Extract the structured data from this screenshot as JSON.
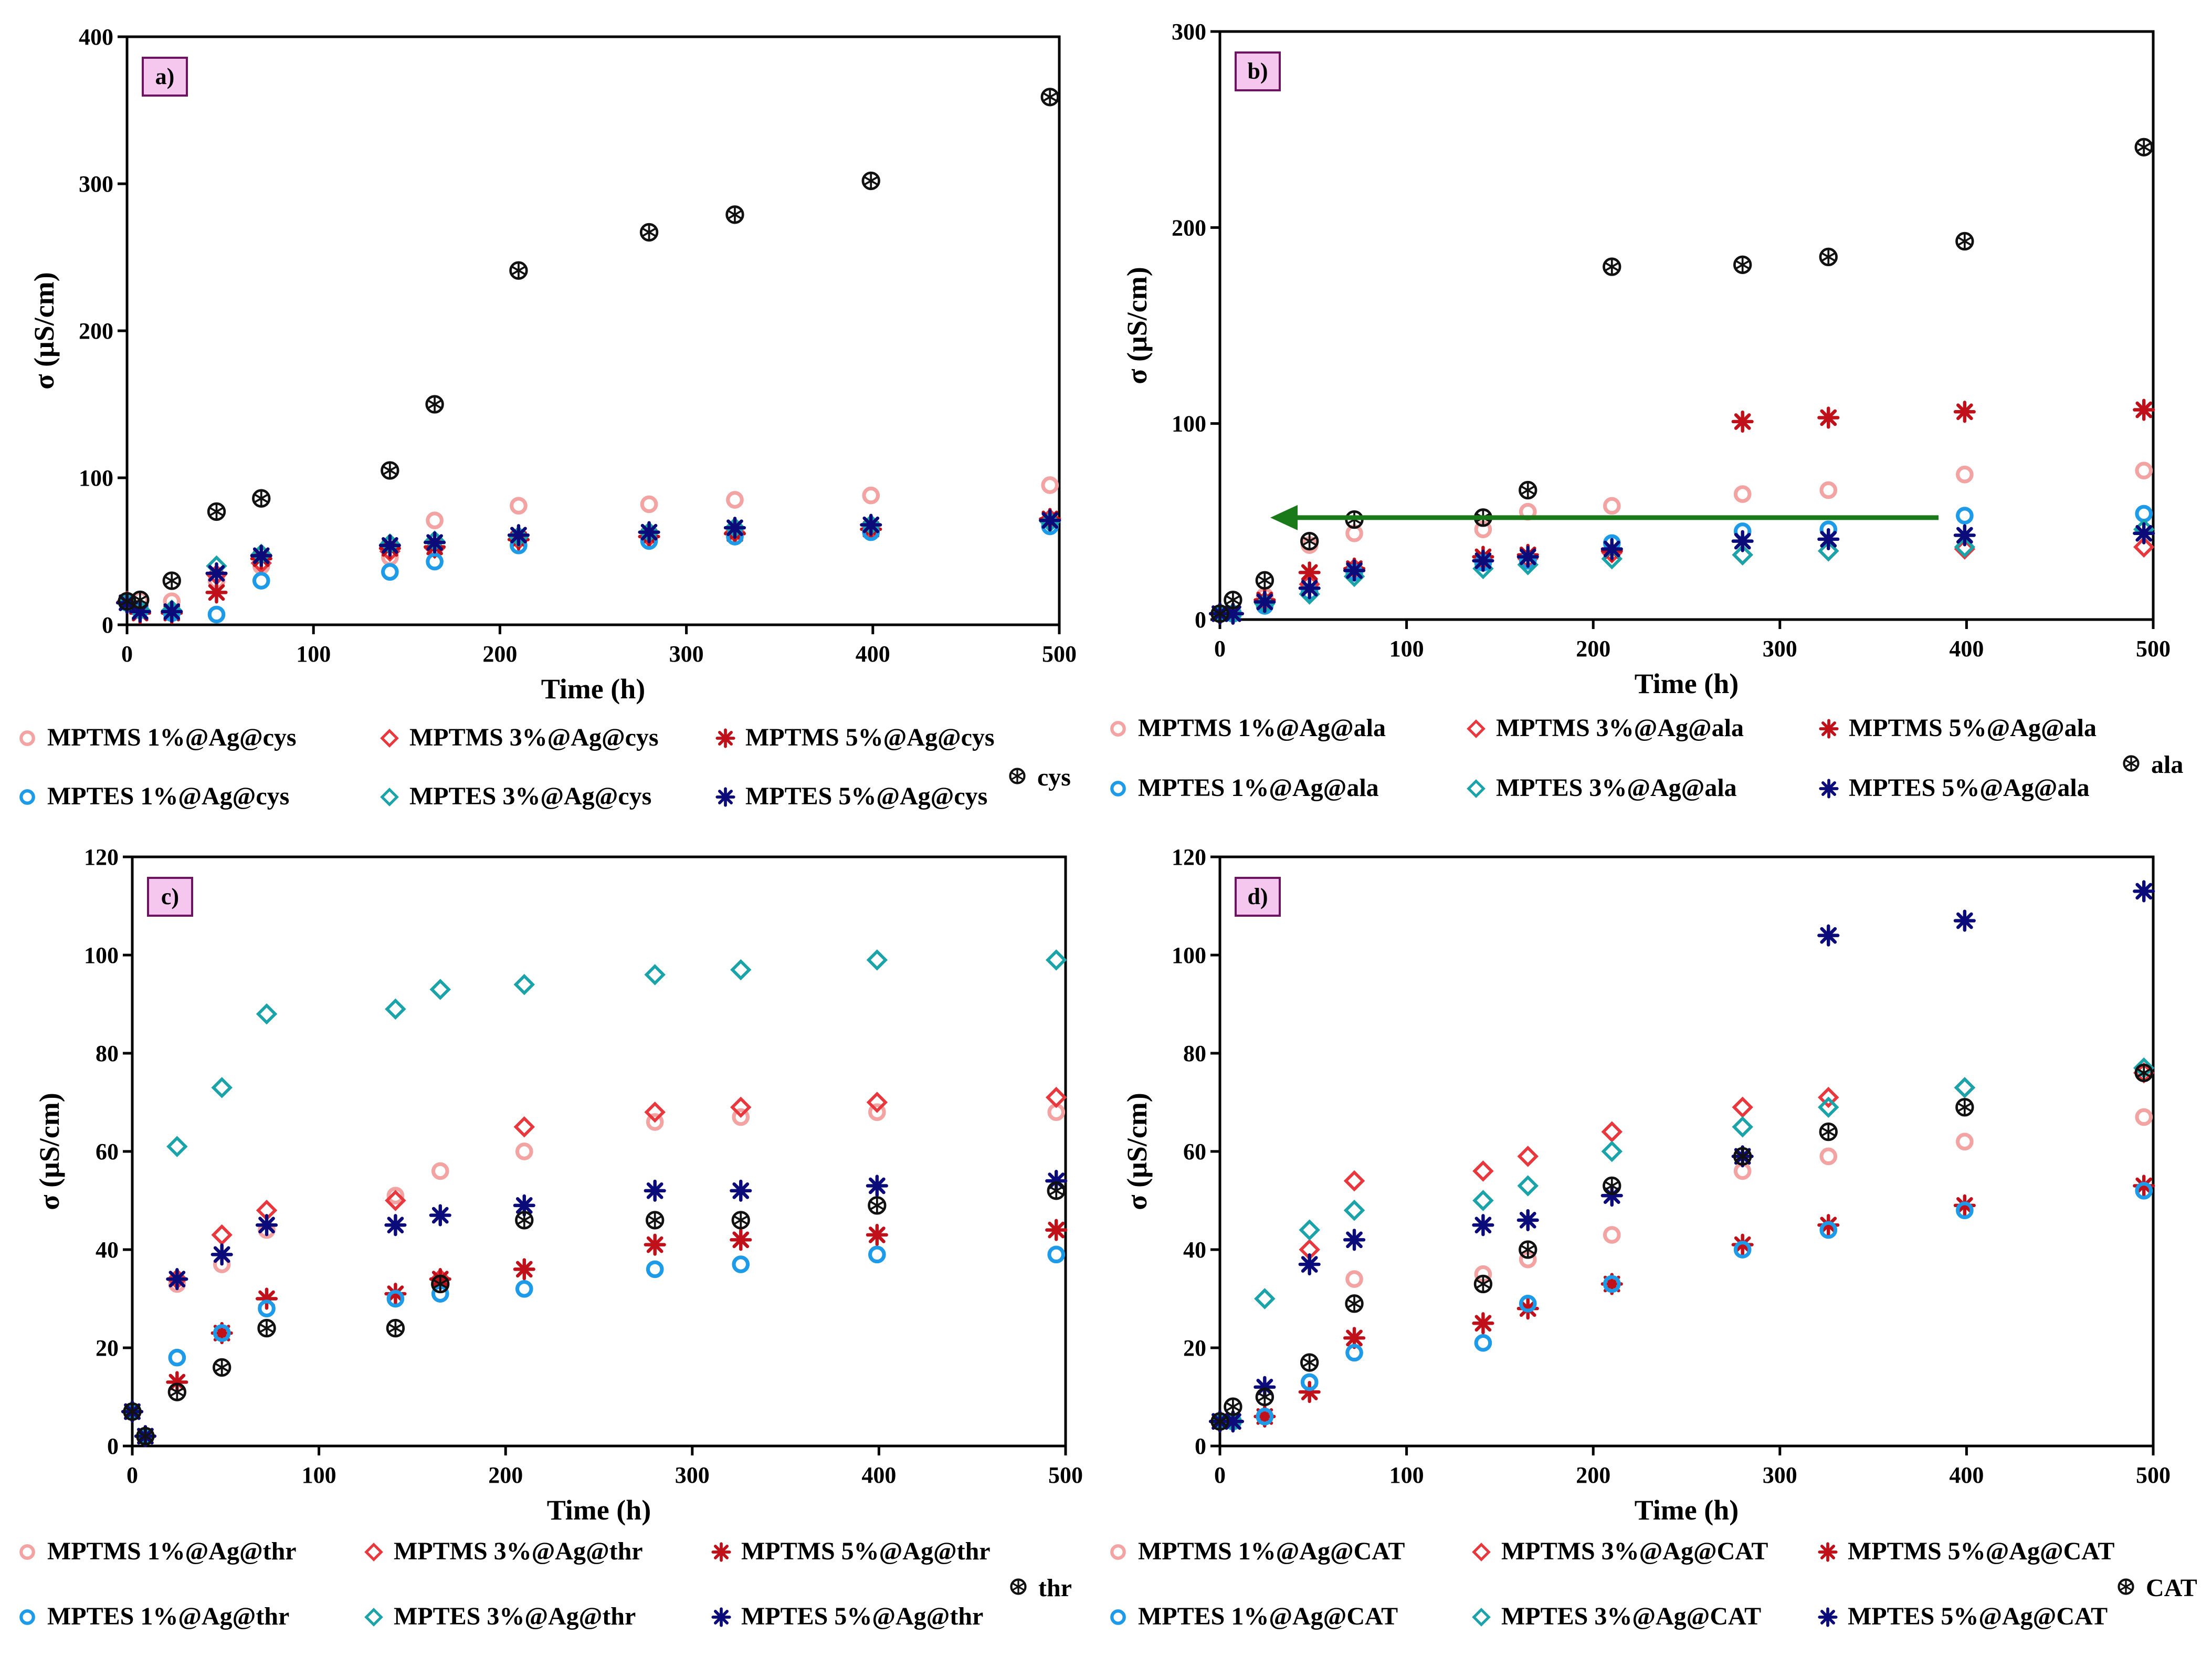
{
  "figure": {
    "title": ""
  },
  "styles": {
    "MPTMS 1%": {
      "color": "#f4a3a3",
      "marker": "circle"
    },
    "MPTMS 3%": {
      "color": "#e8383d",
      "marker": "diamond"
    },
    "MPTMS 5%": {
      "color": "#c0101a",
      "marker": "star"
    },
    "MPTES 1%": {
      "color": "#1e9be8",
      "marker": "circle"
    },
    "MPTES 3%": {
      "color": "#1aa3a8",
      "marker": "diamond"
    },
    "MPTES 5%": {
      "color": "#0b0b7a",
      "marker": "star"
    },
    "bare": {
      "color": "#111111",
      "marker": "crossed"
    },
    "arrow_color": "#1a7a1a",
    "label_fill": "#f5c6ee",
    "label_stroke": "#6b1460"
  },
  "chart_data": [
    {
      "type": "scatter",
      "panel_label": "a)",
      "xlabel": "Time (h)",
      "ylabel": "σ (μS/cm)",
      "xlim": [
        0,
        500
      ],
      "ylim": [
        0,
        400
      ],
      "xticks": [
        0,
        100,
        200,
        300,
        400,
        500
      ],
      "yticks": [
        0,
        100,
        200,
        300,
        400
      ],
      "x": [
        0,
        7,
        24,
        48,
        72,
        141,
        165,
        210,
        280,
        326,
        399,
        495
      ],
      "series": [
        {
          "name": "MPTMS 1%@Ag@cys",
          "style": "MPTMS 1%",
          "values": [
            16,
            17,
            16,
            30,
            40,
            46,
            71,
            81,
            82,
            85,
            88,
            95
          ]
        },
        {
          "name": "MPTMS 3%@Ag@cys",
          "style": "MPTMS 3%",
          "values": [
            16,
            10,
            8,
            34,
            42,
            50,
            52,
            58,
            60,
            63,
            65,
            72
          ]
        },
        {
          "name": "MPTMS 5%@Ag@cys",
          "style": "MPTMS 5%",
          "values": [
            15,
            8,
            8,
            22,
            45,
            52,
            53,
            58,
            60,
            62,
            65,
            72
          ]
        },
        {
          "name": "MPTES 1%@Ag@cys",
          "style": "MPTES 1%",
          "values": [
            15,
            10,
            8,
            7,
            30,
            36,
            43,
            54,
            57,
            60,
            63,
            67
          ]
        },
        {
          "name": "MPTES 3%@Ag@cys",
          "style": "MPTES 3%",
          "values": [
            15,
            10,
            10,
            40,
            48,
            55,
            57,
            60,
            63,
            66,
            68,
            70
          ]
        },
        {
          "name": "MPTES 5%@Ag@cys",
          "style": "MPTES 5%",
          "values": [
            15,
            9,
            9,
            35,
            47,
            54,
            56,
            61,
            63,
            66,
            68,
            71
          ]
        },
        {
          "name": "cys",
          "style": "bare",
          "values": [
            16,
            17,
            30,
            77,
            86,
            105,
            150,
            241,
            267,
            279,
            302,
            359
          ]
        }
      ],
      "legend": {
        "rows": [
          [
            "MPTMS 1%@Ag@cys",
            "MPTMS 3%@Ag@cys",
            "MPTMS 5%@Ag@cys"
          ],
          [
            "MPTES 1%@Ag@cys",
            "MPTES 3%@Ag@cys",
            "MPTES 5%@Ag@cys"
          ]
        ],
        "extra": "cys"
      }
    },
    {
      "type": "scatter",
      "panel_label": "b)",
      "xlabel": "Time (h)",
      "ylabel": "σ (μS/cm)",
      "xlim": [
        0,
        500
      ],
      "ylim": [
        0,
        300
      ],
      "xticks": [
        0,
        100,
        200,
        300,
        400,
        500
      ],
      "yticks": [
        0,
        100,
        200,
        300
      ],
      "x": [
        0,
        7,
        24,
        48,
        72,
        141,
        165,
        210,
        280,
        326,
        399,
        495
      ],
      "series": [
        {
          "name": "MPTMS 1%@Ag@ala",
          "style": "MPTMS 1%",
          "values": [
            3,
            3,
            12,
            38,
            44,
            46,
            55,
            58,
            64,
            66,
            74,
            76
          ]
        },
        {
          "name": "MPTMS 3%@Ag@ala",
          "style": "MPTMS 3%",
          "values": [
            3,
            3,
            9,
            18,
            26,
            30,
            31,
            34,
            33,
            35,
            36,
            37
          ]
        },
        {
          "name": "MPTMS 5%@Ag@ala",
          "style": "MPTMS 5%",
          "values": [
            3,
            3,
            10,
            24,
            26,
            32,
            33,
            35,
            101,
            103,
            106,
            107
          ]
        },
        {
          "name": "MPTES 1%@Ag@ala",
          "style": "MPTES 1%",
          "values": [
            3,
            3,
            7,
            14,
            24,
            29,
            30,
            39,
            45,
            46,
            53,
            54
          ]
        },
        {
          "name": "MPTES 3%@Ag@ala",
          "style": "MPTES 3%",
          "values": [
            3,
            3,
            8,
            13,
            22,
            26,
            28,
            31,
            33,
            35,
            37,
            46
          ]
        },
        {
          "name": "MPTES 5%@Ag@ala",
          "style": "MPTES 5%",
          "values": [
            3,
            3,
            9,
            16,
            25,
            30,
            32,
            36,
            40,
            41,
            43,
            44
          ]
        },
        {
          "name": "ala",
          "style": "bare",
          "values": [
            3,
            10,
            20,
            40,
            51,
            52,
            66,
            180,
            181,
            185,
            193,
            241
          ]
        }
      ],
      "arrow": {
        "from": [
          385,
          52
        ],
        "to": [
          27,
          52
        ]
      },
      "legend": {
        "rows": [
          [
            "MPTMS 1%@Ag@ala",
            "MPTMS 3%@Ag@ala",
            "MPTMS 5%@Ag@ala"
          ],
          [
            "MPTES 1%@Ag@ala",
            "MPTES 3%@Ag@ala",
            "MPTES 5%@Ag@ala"
          ]
        ],
        "extra": "ala"
      }
    },
    {
      "type": "scatter",
      "panel_label": "c)",
      "xlabel": "Time (h)",
      "ylabel": "σ (μS/cm)",
      "xlim": [
        0,
        500
      ],
      "ylim": [
        0,
        120
      ],
      "xticks": [
        0,
        100,
        200,
        300,
        400,
        500
      ],
      "yticks": [
        0,
        20,
        40,
        60,
        80,
        100,
        120
      ],
      "x": [
        0,
        7,
        24,
        48,
        72,
        141,
        165,
        210,
        280,
        326,
        399,
        495
      ],
      "series": [
        {
          "name": "MPTMS 1%@Ag@thr",
          "style": "MPTMS 1%",
          "values": [
            7,
            2,
            33,
            37,
            44,
            51,
            56,
            60,
            66,
            67,
            68,
            68
          ]
        },
        {
          "name": "MPTMS 3%@Ag@thr",
          "style": "MPTMS 3%",
          "values": [
            7,
            2,
            34,
            43,
            48,
            50,
            34,
            65,
            68,
            69,
            70,
            71
          ]
        },
        {
          "name": "MPTMS 5%@Ag@thr",
          "style": "MPTMS 5%",
          "values": [
            7,
            2,
            13,
            23,
            30,
            31,
            34,
            36,
            41,
            42,
            43,
            44
          ]
        },
        {
          "name": "MPTES 1%@Ag@thr",
          "style": "MPTES 1%",
          "values": [
            7,
            2,
            18,
            23,
            28,
            30,
            31,
            32,
            36,
            37,
            39,
            39
          ]
        },
        {
          "name": "MPTES 3%@Ag@thr",
          "style": "MPTES 3%",
          "values": [
            7,
            2,
            61,
            73,
            88,
            89,
            93,
            94,
            96,
            97,
            99,
            99
          ]
        },
        {
          "name": "MPTES 5%@Ag@thr",
          "style": "MPTES 5%",
          "values": [
            7,
            2,
            34,
            39,
            45,
            45,
            47,
            49,
            52,
            52,
            53,
            54
          ]
        },
        {
          "name": "thr",
          "style": "bare",
          "values": [
            7,
            2,
            11,
            16,
            24,
            24,
            33,
            46,
            46,
            46,
            49,
            52
          ]
        }
      ],
      "legend": {
        "rows": [
          [
            "MPTMS 1%@Ag@thr",
            "MPTMS 3%@Ag@thr",
            "MPTMS 5%@Ag@thr"
          ],
          [
            "MPTES 1%@Ag@thr",
            "MPTES 3%@Ag@thr",
            "MPTES 5%@Ag@thr"
          ]
        ],
        "extra": "thr"
      }
    },
    {
      "type": "scatter",
      "panel_label": "d)",
      "xlabel": "Time (h)",
      "ylabel": "σ (μS/cm)",
      "xlim": [
        0,
        500
      ],
      "ylim": [
        0,
        120
      ],
      "xticks": [
        0,
        100,
        200,
        300,
        400,
        500
      ],
      "yticks": [
        0,
        20,
        40,
        60,
        80,
        100,
        120
      ],
      "x": [
        0,
        7,
        24,
        48,
        72,
        141,
        165,
        210,
        280,
        326,
        399,
        495
      ],
      "series": [
        {
          "name": "MPTMS 1%@Ag@CAT",
          "style": "MPTMS 1%",
          "values": [
            5,
            5,
            6,
            13,
            34,
            35,
            38,
            43,
            56,
            59,
            62,
            67
          ]
        },
        {
          "name": "MPTMS 3%@Ag@CAT",
          "style": "MPTMS 3%",
          "values": [
            5,
            5,
            6,
            40,
            54,
            56,
            59,
            64,
            69,
            71,
            73,
            76
          ]
        },
        {
          "name": "MPTMS 5%@Ag@CAT",
          "style": "MPTMS 5%",
          "values": [
            5,
            5,
            6,
            11,
            22,
            25,
            28,
            33,
            41,
            45,
            49,
            53
          ]
        },
        {
          "name": "MPTES 1%@Ag@CAT",
          "style": "MPTES 1%",
          "values": [
            5,
            5,
            6,
            13,
            19,
            21,
            29,
            33,
            40,
            44,
            48,
            52
          ]
        },
        {
          "name": "MPTES 3%@Ag@CAT",
          "style": "MPTES 3%",
          "values": [
            5,
            5,
            30,
            44,
            48,
            50,
            53,
            60,
            65,
            69,
            73,
            77
          ]
        },
        {
          "name": "MPTES 5%@Ag@CAT",
          "style": "MPTES 5%",
          "values": [
            5,
            5,
            12,
            37,
            42,
            45,
            46,
            51,
            59,
            104,
            107,
            113
          ]
        },
        {
          "name": "CAT",
          "style": "bare",
          "values": [
            5,
            8,
            10,
            17,
            29,
            33,
            40,
            53,
            59,
            64,
            69,
            76
          ]
        }
      ],
      "legend": {
        "rows": [
          [
            "MPTMS 1%@Ag@CAT",
            "MPTMS 3%@Ag@CAT",
            "MPTMS 5%@Ag@CAT"
          ],
          [
            "MPTES 1%@Ag@CAT",
            "MPTES 3%@Ag@CAT",
            "MPTES 5%@Ag@CAT"
          ]
        ],
        "extra": "CAT"
      }
    }
  ]
}
